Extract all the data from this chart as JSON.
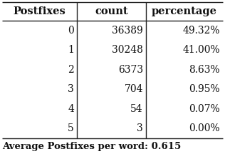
{
  "headers": [
    "Postfixes",
    "count",
    "percentage"
  ],
  "rows": [
    [
      "0",
      "36389",
      "49.32%"
    ],
    [
      "1",
      "30248",
      "41.00%"
    ],
    [
      "2",
      "6373",
      "8.63%"
    ],
    [
      "3",
      "704",
      "0.95%"
    ],
    [
      "4",
      "54",
      "0.07%"
    ],
    [
      "5",
      "3",
      "0.00%"
    ]
  ],
  "footer": "Average Postfixes per word: 0.615",
  "bg_color": "#ffffff",
  "text_color": "#111111",
  "line_color": "#222222",
  "header_fontsize": 10.5,
  "row_fontsize": 10.0,
  "footer_fontsize": 9.5
}
